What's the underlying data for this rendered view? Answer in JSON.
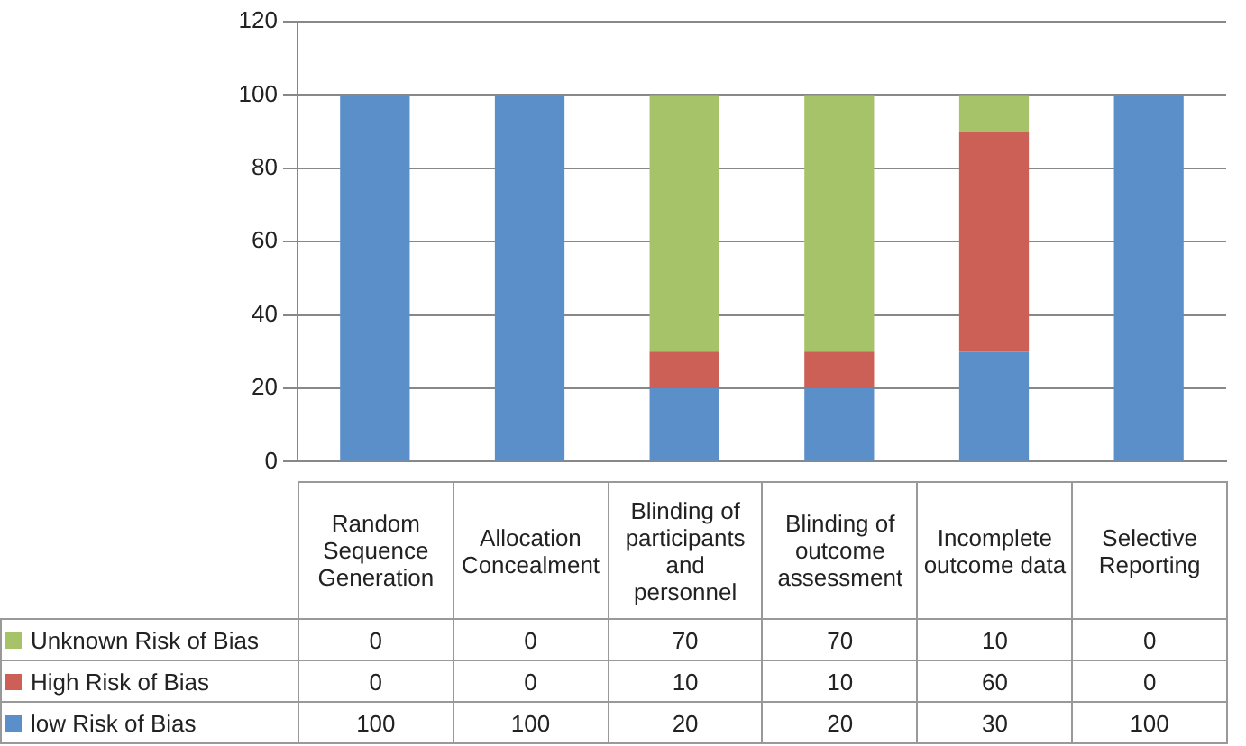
{
  "chart_data": {
    "type": "bar",
    "stacked": true,
    "categories": [
      "Random Sequence Generation",
      "Allocation Concealment",
      "Blinding of participants and personnel",
      "Blinding of outcome assessment",
      "Incomplete outcome data",
      "Selective Reporting"
    ],
    "series": [
      {
        "name": "low Risk of Bias",
        "color": "#5b8fc9",
        "values": [
          100,
          100,
          20,
          20,
          30,
          100
        ]
      },
      {
        "name": "High Risk of Bias",
        "color": "#cc5f56",
        "values": [
          0,
          0,
          10,
          10,
          60,
          0
        ]
      },
      {
        "name": "Unknown Risk of Bias",
        "color": "#a6c36a",
        "values": [
          0,
          0,
          70,
          70,
          10,
          0
        ]
      }
    ],
    "ylim": [
      0,
      120
    ],
    "yticks": [
      0,
      20,
      40,
      60,
      80,
      100,
      120
    ],
    "grid": "y",
    "legend": "bottom",
    "data_labels": true
  }
}
